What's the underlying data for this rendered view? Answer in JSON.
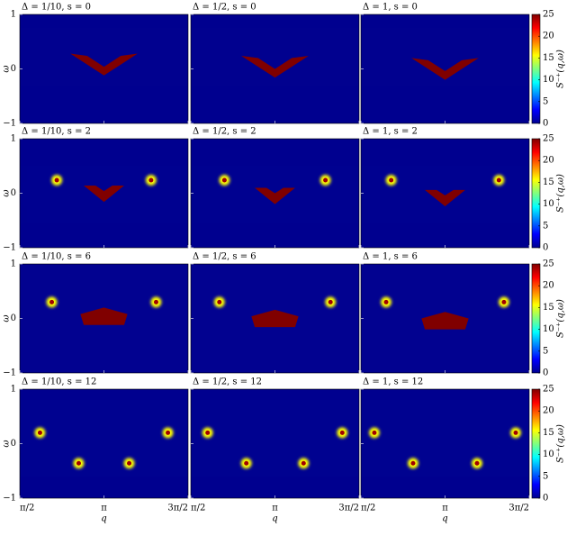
{
  "chart_data": {
    "type": "heatmap",
    "colormap": "jet",
    "panels": [
      {
        "title": "Δ = 1/10, s = 0"
      },
      {
        "title": "Δ = 1/2, s = 0"
      },
      {
        "title": "Δ = 1, s = 0"
      },
      {
        "title": "Δ = 1/10, s = 2"
      },
      {
        "title": "Δ = 1/2, s = 2"
      },
      {
        "title": "Δ = 1, s = 2"
      },
      {
        "title": "Δ = 1/10, s = 6"
      },
      {
        "title": "Δ = 1/2, s = 6"
      },
      {
        "title": "Δ = 1, s = 6"
      },
      {
        "title": "Δ = 1/10, s = 12"
      },
      {
        "title": "Δ = 1/2, s = 12"
      },
      {
        "title": "Δ = 1, s = 12"
      }
    ],
    "xlabel": "q",
    "ylabel": "ω",
    "xlim": [
      1.5708,
      4.7124
    ],
    "xticks": [
      {
        "value": 1.5708,
        "label": "π/2"
      },
      {
        "value": 3.1416,
        "label": "π"
      },
      {
        "value": 4.7124,
        "label": "3π/2"
      }
    ],
    "ylim": [
      -1,
      1
    ],
    "yticks": [
      {
        "value": -1,
        "label": "−1"
      },
      0,
      1
    ],
    "colorbar": {
      "label": "S⁻⁺(q,ω)",
      "lim": [
        0,
        25
      ],
      "ticks": [
        0,
        5,
        10,
        15,
        20,
        25
      ]
    }
  }
}
